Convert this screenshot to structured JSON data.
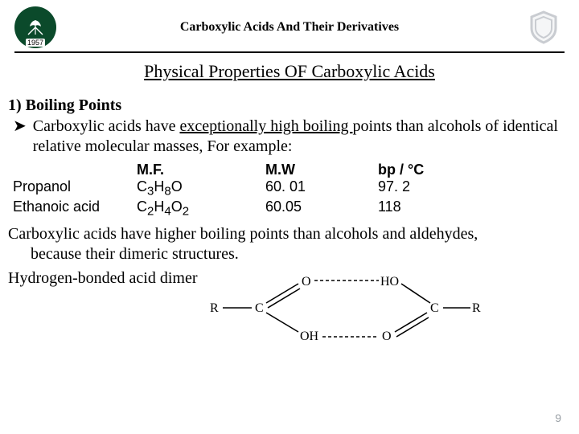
{
  "header": {
    "logo_year": "1957",
    "title": "Carboxylic Acids And Their Derivatives"
  },
  "section_title": "Physical Properties OF Carboxylic Acids",
  "item1_heading": "1) Boiling Points",
  "bullet_glyph": "➤",
  "bullet_pre": "Carboxylic acids have ",
  "bullet_ul": "exceptionally high boiling ",
  "bullet_post": "points than alcohols of identical relative molecular masses, For example:",
  "table": {
    "head": {
      "c1": "M.F.",
      "c2": "M.W",
      "c3": "bp / °C"
    },
    "rows": [
      {
        "c0": "Propanol",
        "c1_html": "C<sub>3</sub>H<sub>8</sub>O",
        "c2": "60. 01",
        "c3": "97. 2"
      },
      {
        "c0": "Ethanoic acid",
        "c1_html": "C<sub>2</sub>H<sub>4</sub>O<sub>2</sub>",
        "c2": "60.05",
        "c3": "118"
      }
    ]
  },
  "para_line1": "Carboxylic acids have higher boiling points than alcohols and aldehydes,",
  "para_line2": "because their dimeric structures.",
  "dimer_label": "Hydrogen-bonded acid dimer",
  "dimer": {
    "atoms": {
      "R": "R",
      "C": "C",
      "O": "O",
      "OH": "OH",
      "HO": "HO"
    }
  },
  "page_number": "9",
  "colors": {
    "text": "#000000",
    "muted": "#9aa0a6",
    "logo_green": "#0b4a2b",
    "shield_gray": "#c9ccd1",
    "shield_inner": "#f5f6f7"
  }
}
